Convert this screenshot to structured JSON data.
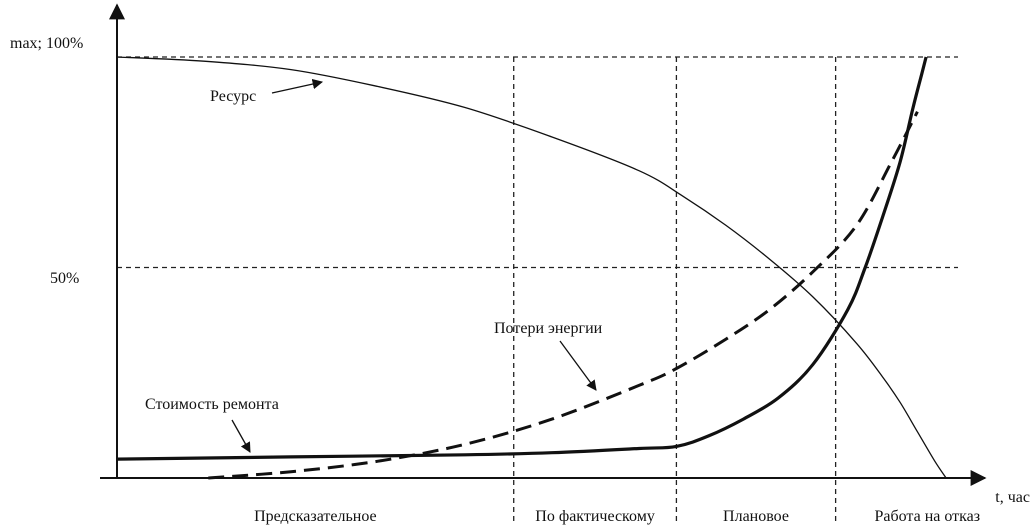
{
  "chart_data": {
    "type": "line",
    "title": "",
    "xlabel": "t, час",
    "ylabel": "max; 100%",
    "ytick_50": "50%",
    "xlim": [
      0,
      100
    ],
    "ylim": [
      0,
      100
    ],
    "grid": false,
    "regions": [
      {
        "label": "Предсказательное",
        "start": 0,
        "end": 45.6
      },
      {
        "label": "По фактическому",
        "start": 45.6,
        "end": 64.3
      },
      {
        "label": "Плановое",
        "start": 64.3,
        "end": 82.6
      },
      {
        "label": "Работа на отказ",
        "start": 82.6,
        "end": 100
      }
    ],
    "guides": {
      "vertical_x": [
        45.6,
        64.3,
        82.6
      ],
      "horizontal_y": [
        100,
        50
      ]
    },
    "series": [
      {
        "name": "Ресурс",
        "style": "thin-solid",
        "x": [
          0,
          10,
          20,
          30,
          40,
          50,
          60,
          65,
          70,
          75,
          80,
          85,
          88,
          90,
          92,
          94,
          95.3
        ],
        "y": [
          100,
          99,
          97,
          93,
          88,
          81,
          73,
          67,
          60,
          52,
          43,
          32,
          24,
          18,
          11,
          4,
          0
        ]
      },
      {
        "name": "Потери энергии",
        "style": "dashed",
        "x": [
          10.5,
          20,
          30,
          40,
          50,
          60,
          64.3,
          70,
          75,
          80,
          85,
          89,
          92
        ],
        "y": [
          0,
          1.5,
          4,
          8,
          14,
          22,
          26,
          33,
          40,
          49,
          60,
          75,
          87
        ]
      },
      {
        "name": "Стоимость ремонта",
        "style": "thick-solid",
        "x": [
          0,
          20,
          40,
          50,
          60,
          64.3,
          68,
          72,
          76,
          80,
          84,
          86,
          88,
          90,
          91.5,
          92.5,
          93
        ],
        "y": [
          4.5,
          5,
          5.5,
          6,
          7,
          7.5,
          10,
          14,
          19,
          27,
          40,
          50,
          62,
          75,
          88,
          96,
          100
        ]
      }
    ],
    "annotations": [
      {
        "text": "Ресурс",
        "target_series": "Ресурс"
      },
      {
        "text": "Потери энергии",
        "target_series": "Потери энергии"
      },
      {
        "text": "Стоимость ремонта",
        "target_series": "Стоимость ремонта"
      }
    ]
  }
}
